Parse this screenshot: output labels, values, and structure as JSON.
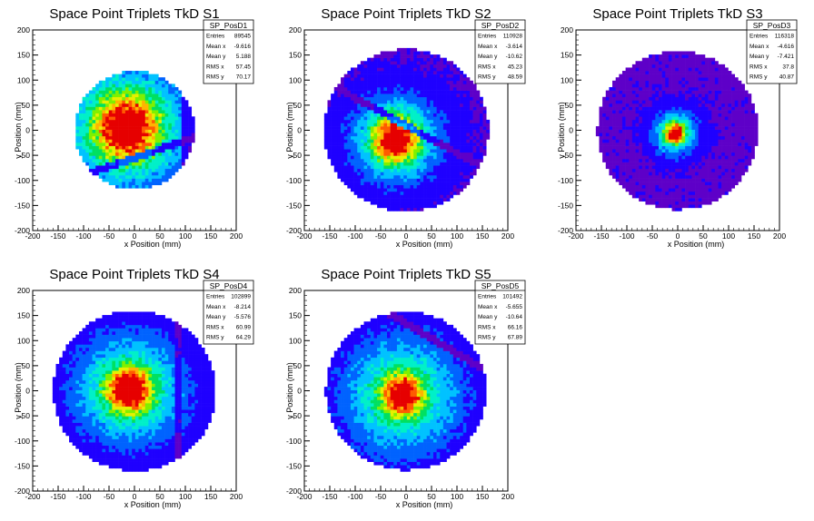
{
  "chart_data": [
    {
      "type": "heatmap",
      "title": "Space Point Triplets TkD S1",
      "xlabel": "x Position (mm)",
      "ylabel": "y Position (mm)",
      "xlim": [
        -200,
        200
      ],
      "ylim": [
        -200,
        200
      ],
      "x_ticks": [
        "-200",
        "-150",
        "-100",
        "-50",
        "0",
        "50",
        "100",
        "150",
        "200"
      ],
      "y_ticks": [
        "200",
        "150",
        "100",
        "50",
        "0",
        "-50",
        "-100",
        "-150",
        "-200"
      ],
      "stats": {
        "name": "SP_PosD1",
        "rows": [
          {
            "label": "Entries",
            "value": "89545"
          },
          {
            "label": "Mean x",
            "value": "-9.616"
          },
          {
            "label": "Mean y",
            "value": "5.188"
          },
          {
            "label": "RMS x",
            "value": "57.45"
          },
          {
            "label": "RMS y",
            "value": "70.17"
          }
        ]
      },
      "distribution": {
        "cx": -15,
        "cy": 5,
        "radius": 118,
        "core_sigma": 40,
        "halo_sigma": 90,
        "gap": "diagonal gap rising to the right",
        "gap_slope": 0.35,
        "gap_intercept": -55,
        "edge_cut_x": [
          -120,
          95
        ]
      }
    },
    {
      "type": "heatmap",
      "title": "Space Point Triplets TkD S2",
      "xlabel": "x Position (mm)",
      "ylabel": "y Position (mm)",
      "xlim": [
        -200,
        200
      ],
      "ylim": [
        -200,
        200
      ],
      "x_ticks": [
        "-200",
        "-150",
        "-100",
        "-50",
        "0",
        "50",
        "100",
        "150",
        "200"
      ],
      "y_ticks": [
        "200",
        "150",
        "100",
        "50",
        "0",
        "-50",
        "-100",
        "-150",
        "-200"
      ],
      "stats": {
        "name": "SP_PosD2",
        "rows": [
          {
            "label": "Entries",
            "value": "110928"
          },
          {
            "label": "Mean x",
            "value": "-3.614"
          },
          {
            "label": "Mean y",
            "value": "-10.62"
          },
          {
            "label": "RMS x",
            "value": "45.23"
          },
          {
            "label": "RMS y",
            "value": "48.59"
          }
        ]
      },
      "distribution": {
        "cx": -20,
        "cy": -18,
        "radius": 162,
        "core_sigma": 28,
        "halo_sigma": 60,
        "gap": "diagonal stripe falling to the right",
        "gap_slope": -0.55,
        "gap_intercept": 10
      }
    },
    {
      "type": "heatmap",
      "title": "Space Point Triplets TkD S3",
      "xlabel": "x Position (mm)",
      "ylabel": "y Position (mm)",
      "xlim": [
        -200,
        200
      ],
      "ylim": [
        -200,
        200
      ],
      "x_ticks": [
        "-200",
        "-150",
        "-100",
        "-50",
        "0",
        "50",
        "100",
        "150",
        "200"
      ],
      "y_ticks": [
        "200",
        "150",
        "100",
        "50",
        "0",
        "-50",
        "-100",
        "-150",
        "-200"
      ],
      "stats": {
        "name": "SP_PosD3",
        "rows": [
          {
            "label": "Entries",
            "value": "116318"
          },
          {
            "label": "Mean x",
            "value": "-4.616"
          },
          {
            "label": "Mean y",
            "value": "-7.421"
          },
          {
            "label": "RMS x",
            "value": "37.8"
          },
          {
            "label": "RMS y",
            "value": "40.87"
          }
        ]
      },
      "distribution": {
        "cx": -5,
        "cy": -5,
        "radius": 158,
        "core_sigma": 12,
        "halo_sigma": 30
      }
    },
    {
      "type": "heatmap",
      "title": "Space Point Triplets TkD S4",
      "xlabel": "x Position (mm)",
      "ylabel": "y Position (mm)",
      "xlim": [
        -200,
        200
      ],
      "ylim": [
        -200,
        200
      ],
      "x_ticks": [
        "-200",
        "-150",
        "-100",
        "-50",
        "0",
        "50",
        "100",
        "150",
        "200"
      ],
      "y_ticks": [
        "200",
        "150",
        "100",
        "50",
        "0",
        "-50",
        "-100",
        "-150",
        "-200"
      ],
      "stats": {
        "name": "SP_PosD4",
        "rows": [
          {
            "label": "Entries",
            "value": "102899"
          },
          {
            "label": "Mean x",
            "value": "-8.214"
          },
          {
            "label": "Mean y",
            "value": "-5.576"
          },
          {
            "label": "RMS x",
            "value": "60.99"
          },
          {
            "label": "RMS y",
            "value": "64.29"
          }
        ]
      },
      "distribution": {
        "cx": -10,
        "cy": 2,
        "radius": 160,
        "core_sigma": 28,
        "halo_sigma": 75,
        "gap": "vertical stripe",
        "gap_x": 85
      }
    },
    {
      "type": "heatmap",
      "title": "Space Point Triplets TkD S5",
      "xlabel": "x Position (mm)",
      "ylabel": "y Position (mm)",
      "xlim": [
        -200,
        200
      ],
      "ylim": [
        -200,
        200
      ],
      "x_ticks": [
        "-200",
        "-150",
        "-100",
        "-50",
        "0",
        "50",
        "100",
        "150",
        "200"
      ],
      "y_ticks": [
        "200",
        "150",
        "100",
        "50",
        "0",
        "-50",
        "-100",
        "-150",
        "-200"
      ],
      "stats": {
        "name": "SP_PosD5",
        "rows": [
          {
            "label": "Entries",
            "value": "101492"
          },
          {
            "label": "Mean x",
            "value": "-5.655"
          },
          {
            "label": "Mean y",
            "value": "-10.64"
          },
          {
            "label": "RMS x",
            "value": "66.16"
          },
          {
            "label": "RMS y",
            "value": "67.89"
          }
        ]
      },
      "distribution": {
        "cx": -8,
        "cy": -8,
        "radius": 158,
        "core_sigma": 25,
        "halo_sigma": 80,
        "gap": "diagonal stripe falling to the right",
        "gap_slope": -0.6,
        "gap_intercept": 135
      }
    }
  ],
  "colors": {
    "palette": [
      "#5e00c8",
      "#1f00ff",
      "#0063ff",
      "#00c2ff",
      "#00f0c8",
      "#00e060",
      "#7ff000",
      "#e6f000",
      "#ffb400",
      "#ff5a00",
      "#e60000"
    ],
    "text": "#000000",
    "frame": "#000000"
  }
}
